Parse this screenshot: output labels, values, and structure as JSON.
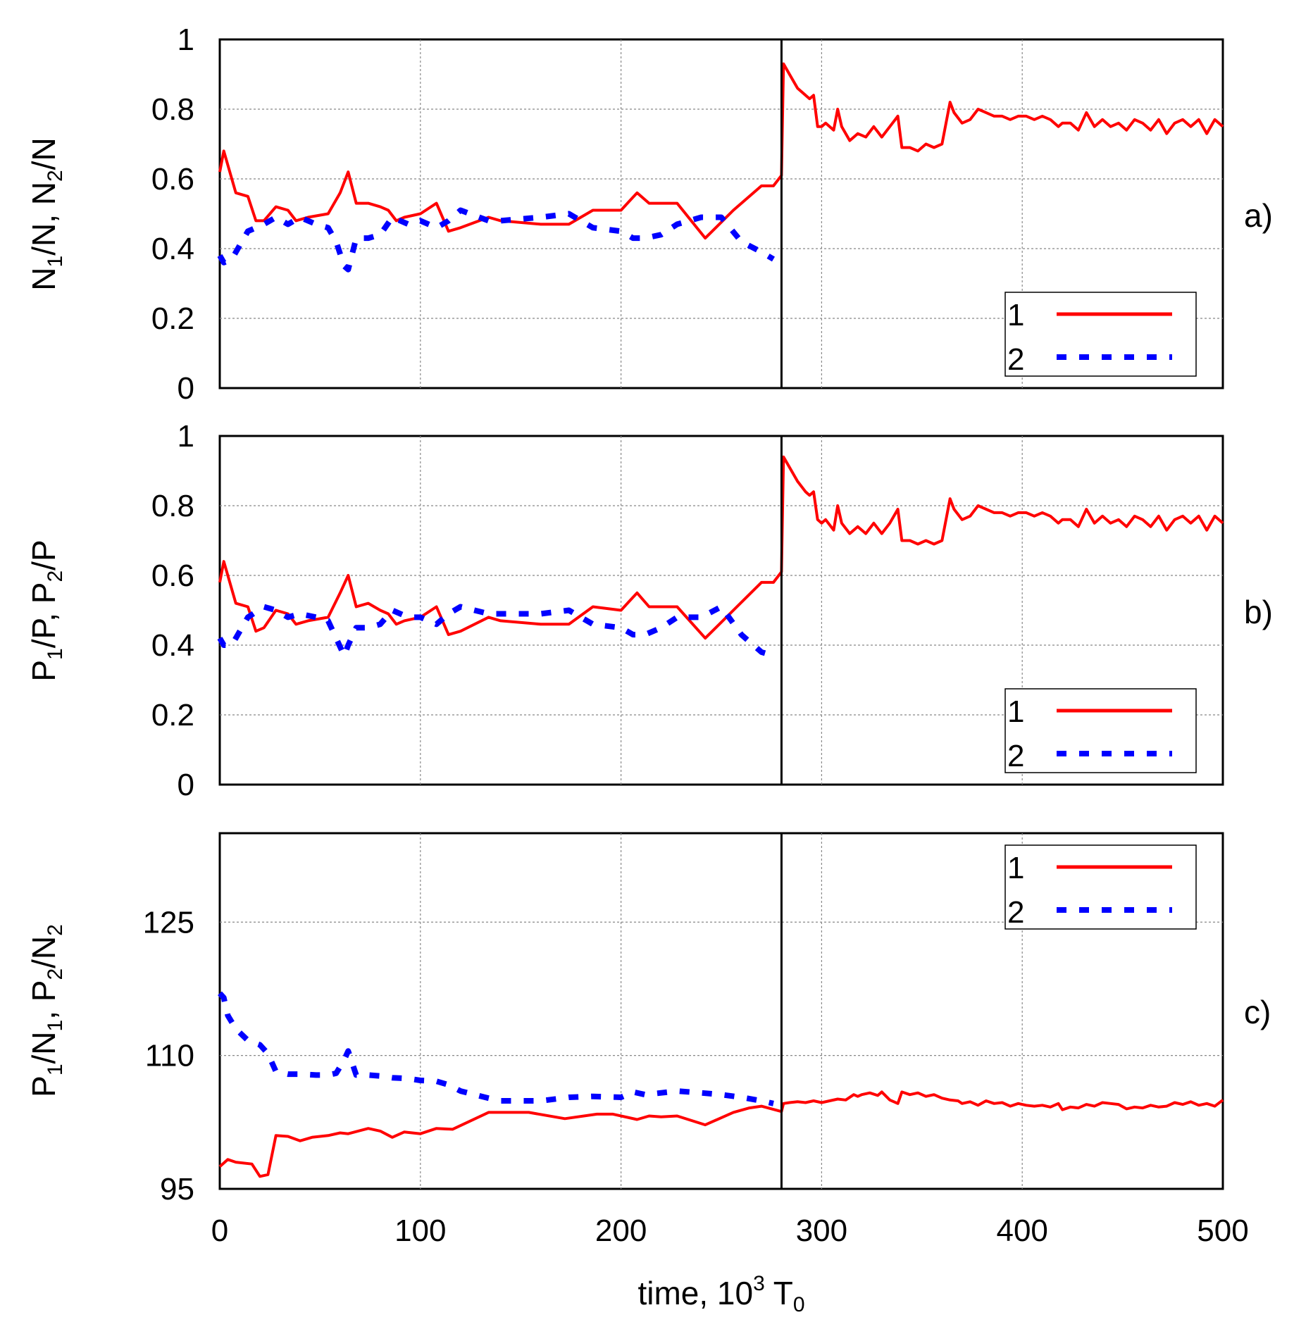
{
  "x_tick_labels": [
    "0",
    "100",
    "200",
    "300",
    "400",
    "500"
  ],
  "x_axis_label": {
    "base": "time, 10",
    "sup": "3",
    "mid": " T",
    "sub": "0"
  },
  "chart_data": [
    {
      "type": "line",
      "panel_label": "a)",
      "ylabel": "N1/N, N2/N",
      "xlim": [
        0,
        500
      ],
      "ylim": [
        0,
        1
      ],
      "yticks": [
        0,
        0.2,
        0.4,
        0.6,
        0.8,
        1
      ],
      "ytick_labels": [
        "0",
        "0.2",
        "0.4",
        "0.6",
        "0.8",
        "1"
      ],
      "xticks": [
        0,
        100,
        200,
        300,
        400,
        500
      ],
      "grid": true,
      "vertical_line_x": 280,
      "legend": {
        "placement": "bottom-right",
        "entries": [
          "1",
          "2"
        ]
      },
      "series": [
        {
          "name": "1",
          "color": "#ff0000",
          "style": "solid",
          "x": [
            0,
            2,
            8,
            14,
            18,
            22,
            28,
            34,
            38,
            44,
            54,
            60,
            64,
            68,
            74,
            80,
            84,
            88,
            92,
            100,
            108,
            114,
            120,
            134,
            140,
            160,
            174,
            186,
            200,
            208,
            214,
            228,
            242,
            256,
            270,
            276,
            280,
            281,
            284,
            288,
            292,
            294,
            296,
            298,
            300,
            302,
            306,
            308,
            310,
            314,
            318,
            322,
            326,
            330,
            334,
            338,
            340,
            344,
            348,
            352,
            356,
            360,
            364,
            366,
            370,
            374,
            378,
            382,
            386,
            390,
            394,
            398,
            402,
            406,
            410,
            414,
            418,
            420,
            424,
            428,
            432,
            436,
            440,
            444,
            448,
            452,
            456,
            460,
            464,
            468,
            472,
            476,
            480,
            484,
            488,
            492,
            496,
            500
          ],
          "y": [
            0.62,
            0.68,
            0.56,
            0.55,
            0.48,
            0.48,
            0.52,
            0.51,
            0.48,
            0.49,
            0.5,
            0.56,
            0.62,
            0.53,
            0.53,
            0.52,
            0.51,
            0.48,
            0.49,
            0.5,
            0.53,
            0.45,
            0.46,
            0.49,
            0.48,
            0.47,
            0.47,
            0.51,
            0.51,
            0.56,
            0.53,
            0.53,
            0.43,
            0.51,
            0.58,
            0.58,
            0.61,
            0.93,
            0.9,
            0.86,
            0.84,
            0.83,
            0.84,
            0.75,
            0.75,
            0.76,
            0.74,
            0.8,
            0.75,
            0.71,
            0.73,
            0.72,
            0.75,
            0.72,
            0.75,
            0.78,
            0.69,
            0.69,
            0.68,
            0.7,
            0.69,
            0.7,
            0.82,
            0.79,
            0.76,
            0.77,
            0.8,
            0.79,
            0.78,
            0.78,
            0.77,
            0.78,
            0.78,
            0.77,
            0.78,
            0.77,
            0.75,
            0.76,
            0.76,
            0.74,
            0.79,
            0.75,
            0.77,
            0.75,
            0.76,
            0.74,
            0.77,
            0.76,
            0.74,
            0.77,
            0.73,
            0.76,
            0.77,
            0.75,
            0.77,
            0.73,
            0.77,
            0.75
          ]
        },
        {
          "name": "2",
          "color": "#0000ff",
          "style": "dashed",
          "x": [
            0,
            2,
            6,
            14,
            22,
            28,
            34,
            40,
            48,
            54,
            58,
            62,
            64,
            68,
            74,
            80,
            86,
            94,
            100,
            108,
            114,
            120,
            134,
            140,
            160,
            174,
            186,
            200,
            206,
            212,
            220,
            228,
            240,
            250,
            260,
            270,
            276
          ],
          "y": [
            0.38,
            0.36,
            0.37,
            0.45,
            0.47,
            0.49,
            0.47,
            0.49,
            0.47,
            0.46,
            0.42,
            0.35,
            0.34,
            0.43,
            0.43,
            0.44,
            0.49,
            0.47,
            0.48,
            0.46,
            0.48,
            0.51,
            0.48,
            0.48,
            0.49,
            0.5,
            0.46,
            0.45,
            0.43,
            0.43,
            0.44,
            0.47,
            0.49,
            0.49,
            0.42,
            0.39,
            0.37
          ]
        }
      ]
    },
    {
      "type": "line",
      "panel_label": "b)",
      "ylabel": "P1/P, P2/P",
      "xlim": [
        0,
        500
      ],
      "ylim": [
        0,
        1
      ],
      "yticks": [
        0,
        0.2,
        0.4,
        0.6,
        0.8,
        1
      ],
      "ytick_labels": [
        "0",
        "0.2",
        "0.4",
        "0.6",
        "0.8",
        "1"
      ],
      "xticks": [
        0,
        100,
        200,
        300,
        400,
        500
      ],
      "grid": true,
      "vertical_line_x": 280,
      "legend": {
        "placement": "bottom-right",
        "entries": [
          "1",
          "2"
        ]
      },
      "series": [
        {
          "name": "1",
          "color": "#ff0000",
          "style": "solid",
          "x": [
            0,
            2,
            8,
            14,
            18,
            22,
            28,
            34,
            38,
            44,
            54,
            60,
            64,
            68,
            74,
            80,
            84,
            88,
            92,
            100,
            108,
            114,
            120,
            134,
            140,
            160,
            174,
            186,
            200,
            208,
            214,
            228,
            242,
            256,
            270,
            276,
            280,
            281,
            284,
            288,
            292,
            294,
            296,
            298,
            300,
            302,
            306,
            308,
            310,
            314,
            318,
            322,
            326,
            330,
            334,
            338,
            340,
            344,
            348,
            352,
            356,
            360,
            364,
            366,
            370,
            374,
            378,
            382,
            386,
            390,
            394,
            398,
            402,
            406,
            410,
            414,
            418,
            420,
            424,
            428,
            432,
            436,
            440,
            444,
            448,
            452,
            456,
            460,
            464,
            468,
            472,
            476,
            480,
            484,
            488,
            492,
            496,
            500
          ],
          "y": [
            0.58,
            0.64,
            0.52,
            0.51,
            0.44,
            0.45,
            0.5,
            0.49,
            0.46,
            0.47,
            0.48,
            0.55,
            0.6,
            0.51,
            0.52,
            0.5,
            0.49,
            0.46,
            0.47,
            0.48,
            0.51,
            0.43,
            0.44,
            0.48,
            0.47,
            0.46,
            0.46,
            0.51,
            0.5,
            0.55,
            0.51,
            0.51,
            0.42,
            0.5,
            0.58,
            0.58,
            0.61,
            0.94,
            0.91,
            0.87,
            0.84,
            0.83,
            0.84,
            0.76,
            0.75,
            0.76,
            0.73,
            0.8,
            0.75,
            0.72,
            0.74,
            0.72,
            0.75,
            0.72,
            0.75,
            0.79,
            0.7,
            0.7,
            0.69,
            0.7,
            0.69,
            0.7,
            0.82,
            0.79,
            0.76,
            0.77,
            0.8,
            0.79,
            0.78,
            0.78,
            0.77,
            0.78,
            0.78,
            0.77,
            0.78,
            0.77,
            0.75,
            0.76,
            0.76,
            0.74,
            0.79,
            0.75,
            0.77,
            0.75,
            0.76,
            0.74,
            0.77,
            0.76,
            0.74,
            0.77,
            0.73,
            0.76,
            0.77,
            0.75,
            0.77,
            0.73,
            0.77,
            0.75
          ]
        },
        {
          "name": "2",
          "color": "#0000ff",
          "style": "dashed",
          "x": [
            0,
            2,
            6,
            14,
            22,
            28,
            34,
            40,
            48,
            54,
            58,
            62,
            64,
            68,
            74,
            80,
            86,
            94,
            100,
            108,
            114,
            120,
            134,
            140,
            160,
            174,
            186,
            200,
            206,
            212,
            220,
            228,
            240,
            250,
            260,
            270,
            276
          ],
          "y": [
            0.42,
            0.4,
            0.4,
            0.48,
            0.51,
            0.5,
            0.48,
            0.49,
            0.48,
            0.47,
            0.42,
            0.37,
            0.4,
            0.45,
            0.45,
            0.46,
            0.5,
            0.48,
            0.48,
            0.46,
            0.49,
            0.51,
            0.49,
            0.49,
            0.49,
            0.5,
            0.46,
            0.45,
            0.43,
            0.43,
            0.45,
            0.48,
            0.48,
            0.51,
            0.43,
            0.38,
            0.37
          ]
        }
      ]
    },
    {
      "type": "line",
      "panel_label": "c)",
      "ylabel": "P1/N1, P2/N2",
      "xlim": [
        0,
        500
      ],
      "ylim": [
        95,
        135
      ],
      "yticks": [
        95,
        110,
        125
      ],
      "ytick_labels": [
        "95",
        "110",
        "125"
      ],
      "xticks": [
        0,
        100,
        200,
        300,
        400,
        500
      ],
      "grid": true,
      "vertical_line_x": 280,
      "legend": {
        "placement": "top-right",
        "entries": [
          "1",
          "2"
        ]
      },
      "series": [
        {
          "name": "1",
          "color": "#ff0000",
          "style": "solid",
          "x": [
            0,
            4,
            8,
            16,
            20,
            24,
            28,
            34,
            40,
            46,
            54,
            60,
            64,
            74,
            80,
            86,
            92,
            100,
            108,
            116,
            134,
            154,
            172,
            188,
            196,
            208,
            214,
            220,
            228,
            242,
            256,
            264,
            270,
            280,
            281,
            284,
            288,
            292,
            296,
            300,
            304,
            308,
            312,
            316,
            318,
            320,
            324,
            328,
            330,
            334,
            338,
            340,
            344,
            348,
            352,
            356,
            360,
            364,
            368,
            370,
            374,
            378,
            382,
            386,
            390,
            394,
            398,
            402,
            406,
            410,
            414,
            418,
            420,
            424,
            428,
            432,
            436,
            440,
            444,
            448,
            452,
            456,
            460,
            464,
            468,
            472,
            476,
            480,
            484,
            488,
            492,
            496,
            500
          ],
          "y": [
            97.5,
            98.3,
            98.0,
            97.8,
            96.4,
            96.6,
            101.0,
            100.9,
            100.4,
            100.8,
            101.0,
            101.3,
            101.2,
            101.8,
            101.5,
            100.8,
            101.4,
            101.2,
            101.8,
            101.7,
            103.6,
            103.6,
            102.9,
            103.4,
            103.4,
            102.8,
            103.2,
            103.1,
            103.2,
            102.2,
            103.6,
            104.1,
            104.3,
            103.7,
            104.6,
            104.7,
            104.8,
            104.7,
            104.9,
            104.7,
            104.9,
            105.1,
            105.0,
            105.6,
            105.4,
            105.6,
            105.8,
            105.5,
            105.9,
            105.0,
            104.6,
            105.9,
            105.6,
            105.8,
            105.4,
            105.6,
            105.2,
            105.0,
            104.9,
            104.6,
            104.8,
            104.4,
            104.9,
            104.6,
            104.7,
            104.3,
            104.6,
            104.4,
            104.3,
            104.4,
            104.2,
            104.6,
            103.9,
            104.2,
            104.1,
            104.5,
            104.3,
            104.7,
            104.6,
            104.5,
            104.0,
            104.2,
            104.1,
            104.4,
            104.2,
            104.3,
            104.7,
            104.5,
            104.8,
            104.4,
            104.6,
            104.3,
            105.0
          ]
        },
        {
          "name": "2",
          "color": "#0000ff",
          "style": "dashed",
          "x": [
            0,
            2,
            4,
            8,
            14,
            20,
            24,
            28,
            34,
            40,
            48,
            54,
            58,
            62,
            64,
            68,
            74,
            80,
            86,
            94,
            100,
            108,
            114,
            120,
            134,
            140,
            160,
            174,
            186,
            200,
            206,
            212,
            220,
            228,
            240,
            250,
            260,
            270,
            276
          ],
          "y": [
            117.0,
            116.5,
            114.5,
            113.0,
            111.7,
            111.2,
            110.2,
            108.2,
            107.9,
            107.9,
            107.8,
            107.8,
            108.0,
            109.5,
            110.5,
            107.8,
            107.8,
            107.7,
            107.5,
            107.4,
            107.2,
            107.1,
            106.7,
            106.0,
            105.2,
            104.9,
            104.9,
            105.3,
            105.4,
            105.3,
            105.9,
            105.6,
            105.8,
            106.0,
            105.8,
            105.6,
            105.3,
            104.9,
            104.6
          ]
        }
      ]
    }
  ]
}
